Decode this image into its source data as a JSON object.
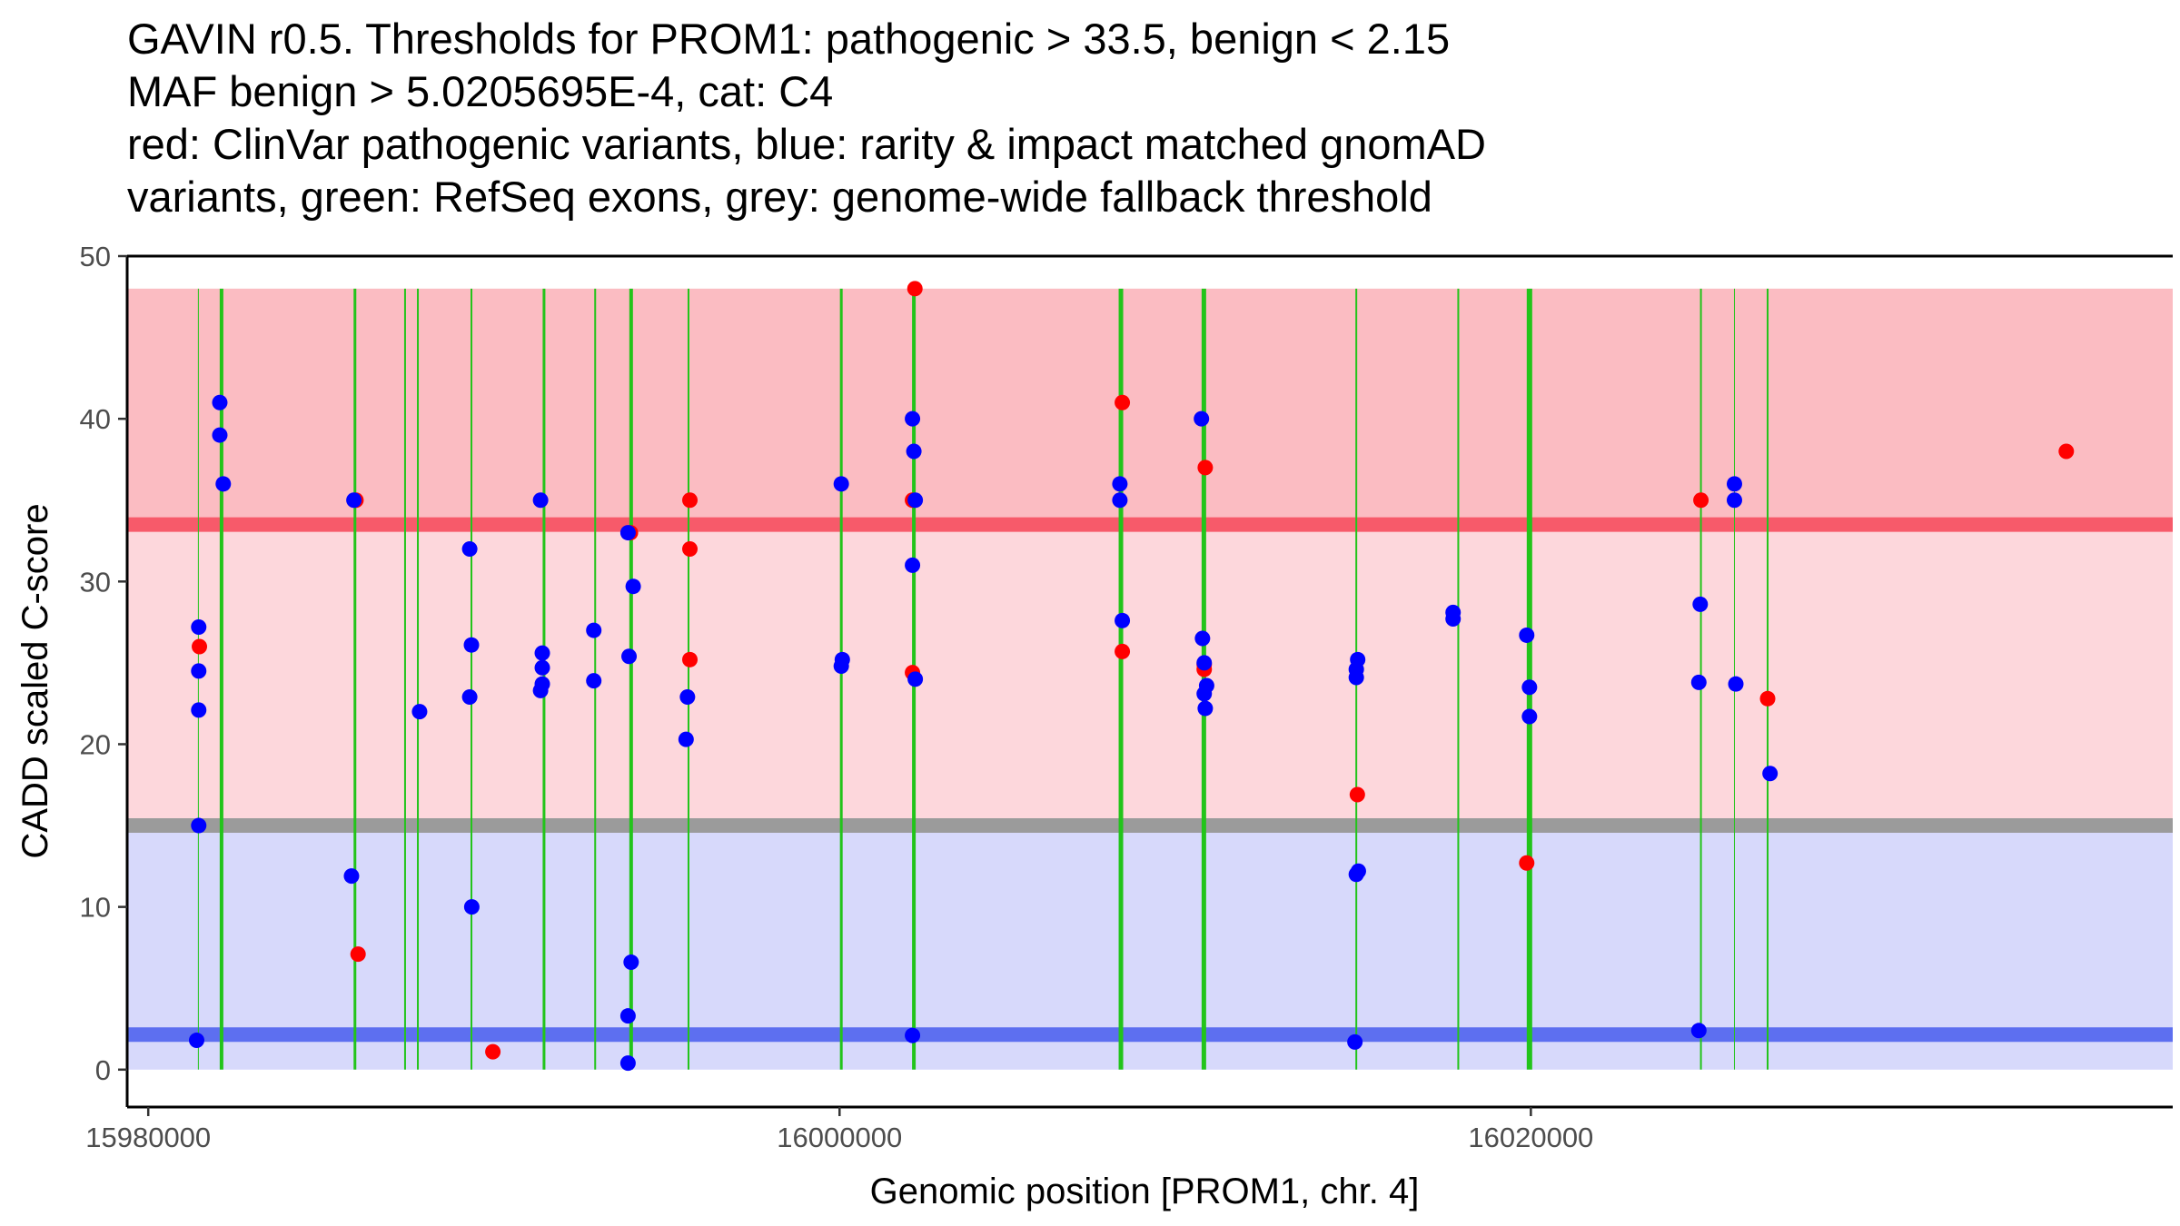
{
  "chart_data": {
    "type": "scatter",
    "title_lines": [
      "GAVIN r0.5. Thresholds for PROM1: pathogenic > 33.5, benign < 2.15",
      "MAF benign > 5.0205695E-4, cat: C4",
      "red: ClinVar pathogenic variants, blue: rarity & impact matched gnomAD",
      "variants, green: RefSeq exons, grey: genome-wide fallback threshold"
    ],
    "xlabel": "Genomic position [PROM1, chr. 4]",
    "ylabel": "CADD scaled C-score",
    "xlim": [
      15979390,
      16038570
    ],
    "ylim": [
      -2.3,
      50
    ],
    "x_ticks": [
      {
        "value": 15980000,
        "label": "15980000"
      },
      {
        "value": 16000000,
        "label": "16000000"
      },
      {
        "value": 16020000,
        "label": "16020000"
      }
    ],
    "y_ticks": [
      {
        "value": 0,
        "label": "0"
      },
      {
        "value": 10,
        "label": "10"
      },
      {
        "value": 20,
        "label": "20"
      },
      {
        "value": 30,
        "label": "30"
      },
      {
        "value": 40,
        "label": "40"
      },
      {
        "value": 50,
        "label": "50"
      }
    ],
    "regions": [
      {
        "name": "pathogenic-region",
        "ymin": 33.5,
        "ymax": 48,
        "xmin": 15979390,
        "xmax": 16038570,
        "color": "#fbbcc2"
      },
      {
        "name": "intermediate-region",
        "ymin": 15.0,
        "ymax": 33.5,
        "xmin": 15979390,
        "xmax": 16038570,
        "color": "#fdd7dc"
      },
      {
        "name": "benign-region",
        "ymin": 0,
        "ymax": 15.0,
        "xmin": 15979390,
        "xmax": 16038570,
        "color": "#d7d9fb"
      }
    ],
    "threshold_lines": [
      {
        "name": "pathogenic-threshold",
        "y": 33.5,
        "color": "#f75a6a",
        "width": 16
      },
      {
        "name": "fallback-threshold",
        "y": 15.0,
        "color": "#9b9b9b",
        "width": 16
      },
      {
        "name": "benign-threshold",
        "y": 2.15,
        "color": "#5d6ff0",
        "width": 16
      }
    ],
    "exons": [
      {
        "x": 15981450,
        "w": 1
      },
      {
        "x": 15982120,
        "w": 4
      },
      {
        "x": 15985980,
        "w": 3
      },
      {
        "x": 15987430,
        "w": 2
      },
      {
        "x": 15987800,
        "w": 2
      },
      {
        "x": 15989350,
        "w": 2
      },
      {
        "x": 15991450,
        "w": 3
      },
      {
        "x": 15992930,
        "w": 2
      },
      {
        "x": 15993970,
        "w": 4
      },
      {
        "x": 15995630,
        "w": 2
      },
      {
        "x": 16000050,
        "w": 3
      },
      {
        "x": 16002150,
        "w": 4
      },
      {
        "x": 16008140,
        "w": 5
      },
      {
        "x": 16010540,
        "w": 5
      },
      {
        "x": 16014950,
        "w": 2
      },
      {
        "x": 16017900,
        "w": 2
      },
      {
        "x": 16019960,
        "w": 6
      },
      {
        "x": 16024920,
        "w": 2
      },
      {
        "x": 16025890,
        "w": 1
      },
      {
        "x": 16026850,
        "w": 2
      }
    ],
    "series": [
      {
        "name": "ClinVar pathogenic variants",
        "color": "#ff0000",
        "points": [
          {
            "x": 15981480,
            "y": 26.0
          },
          {
            "x": 15986010,
            "y": 35.0
          },
          {
            "x": 15986070,
            "y": 7.1
          },
          {
            "x": 15989970,
            "y": 1.1
          },
          {
            "x": 15993950,
            "y": 33.0
          },
          {
            "x": 15995670,
            "y": 35.0
          },
          {
            "x": 15995670,
            "y": 32.0
          },
          {
            "x": 15995670,
            "y": 25.2
          },
          {
            "x": 16002180,
            "y": 48.0
          },
          {
            "x": 16002110,
            "y": 35.0
          },
          {
            "x": 16002110,
            "y": 24.4
          },
          {
            "x": 16008180,
            "y": 41.0
          },
          {
            "x": 16008180,
            "y": 25.7
          },
          {
            "x": 16010580,
            "y": 37.0
          },
          {
            "x": 16010550,
            "y": 24.9
          },
          {
            "x": 16010550,
            "y": 24.6
          },
          {
            "x": 16014980,
            "y": 16.9
          },
          {
            "x": 16019880,
            "y": 12.7
          },
          {
            "x": 16024920,
            "y": 35.0
          },
          {
            "x": 16026850,
            "y": 22.8
          },
          {
            "x": 16035490,
            "y": 38.0
          }
        ]
      },
      {
        "name": "rarity & impact matched gnomAD variants",
        "color": "#0000ff",
        "points": [
          {
            "x": 15981460,
            "y": 27.2
          },
          {
            "x": 15981460,
            "y": 24.5
          },
          {
            "x": 15981460,
            "y": 22.1
          },
          {
            "x": 15981460,
            "y": 15.0
          },
          {
            "x": 15981400,
            "y": 1.8
          },
          {
            "x": 15982070,
            "y": 41.0
          },
          {
            "x": 15982070,
            "y": 39.0
          },
          {
            "x": 15982170,
            "y": 36.0
          },
          {
            "x": 15985950,
            "y": 35.0
          },
          {
            "x": 15985880,
            "y": 11.9
          },
          {
            "x": 15987850,
            "y": 22.0
          },
          {
            "x": 15989300,
            "y": 32.0
          },
          {
            "x": 15989350,
            "y": 26.1
          },
          {
            "x": 15989300,
            "y": 22.9
          },
          {
            "x": 15989360,
            "y": 10.0
          },
          {
            "x": 15991350,
            "y": 35.0
          },
          {
            "x": 15991400,
            "y": 25.6
          },
          {
            "x": 15991400,
            "y": 24.7
          },
          {
            "x": 15991400,
            "y": 23.7
          },
          {
            "x": 15991350,
            "y": 23.3
          },
          {
            "x": 15992890,
            "y": 27.0
          },
          {
            "x": 15992890,
            "y": 23.9
          },
          {
            "x": 15993880,
            "y": 33.0
          },
          {
            "x": 15994030,
            "y": 29.7
          },
          {
            "x": 15993910,
            "y": 25.4
          },
          {
            "x": 15993970,
            "y": 6.6
          },
          {
            "x": 15993880,
            "y": 3.3
          },
          {
            "x": 15993880,
            "y": 0.4
          },
          {
            "x": 15995600,
            "y": 22.9
          },
          {
            "x": 15995560,
            "y": 20.3
          },
          {
            "x": 16000050,
            "y": 36.0
          },
          {
            "x": 16000080,
            "y": 25.2
          },
          {
            "x": 16000050,
            "y": 24.8
          },
          {
            "x": 16002110,
            "y": 40.0
          },
          {
            "x": 16002150,
            "y": 38.0
          },
          {
            "x": 16002190,
            "y": 35.0
          },
          {
            "x": 16002110,
            "y": 31.0
          },
          {
            "x": 16002190,
            "y": 24.0
          },
          {
            "x": 16002110,
            "y": 2.1
          },
          {
            "x": 16008110,
            "y": 36.0
          },
          {
            "x": 16008110,
            "y": 35.0
          },
          {
            "x": 16008180,
            "y": 27.6
          },
          {
            "x": 16010470,
            "y": 40.0
          },
          {
            "x": 16010500,
            "y": 26.5
          },
          {
            "x": 16010550,
            "y": 25.0
          },
          {
            "x": 16010620,
            "y": 23.6
          },
          {
            "x": 16010550,
            "y": 23.1
          },
          {
            "x": 16010580,
            "y": 22.2
          },
          {
            "x": 16014990,
            "y": 25.2
          },
          {
            "x": 16014950,
            "y": 24.6
          },
          {
            "x": 16014950,
            "y": 24.1
          },
          {
            "x": 16015010,
            "y": 12.2
          },
          {
            "x": 16014950,
            "y": 12.0
          },
          {
            "x": 16014910,
            "y": 1.7
          },
          {
            "x": 16017750,
            "y": 28.1
          },
          {
            "x": 16017750,
            "y": 27.7
          },
          {
            "x": 16019880,
            "y": 26.7
          },
          {
            "x": 16019960,
            "y": 23.5
          },
          {
            "x": 16019960,
            "y": 21.7
          },
          {
            "x": 16024900,
            "y": 28.6
          },
          {
            "x": 16024860,
            "y": 23.8
          },
          {
            "x": 16024860,
            "y": 2.4
          },
          {
            "x": 16025890,
            "y": 36.0
          },
          {
            "x": 16025890,
            "y": 35.0
          },
          {
            "x": 16025930,
            "y": 23.7
          },
          {
            "x": 16026920,
            "y": 18.2
          }
        ]
      }
    ],
    "legend": "none",
    "grid": false
  }
}
